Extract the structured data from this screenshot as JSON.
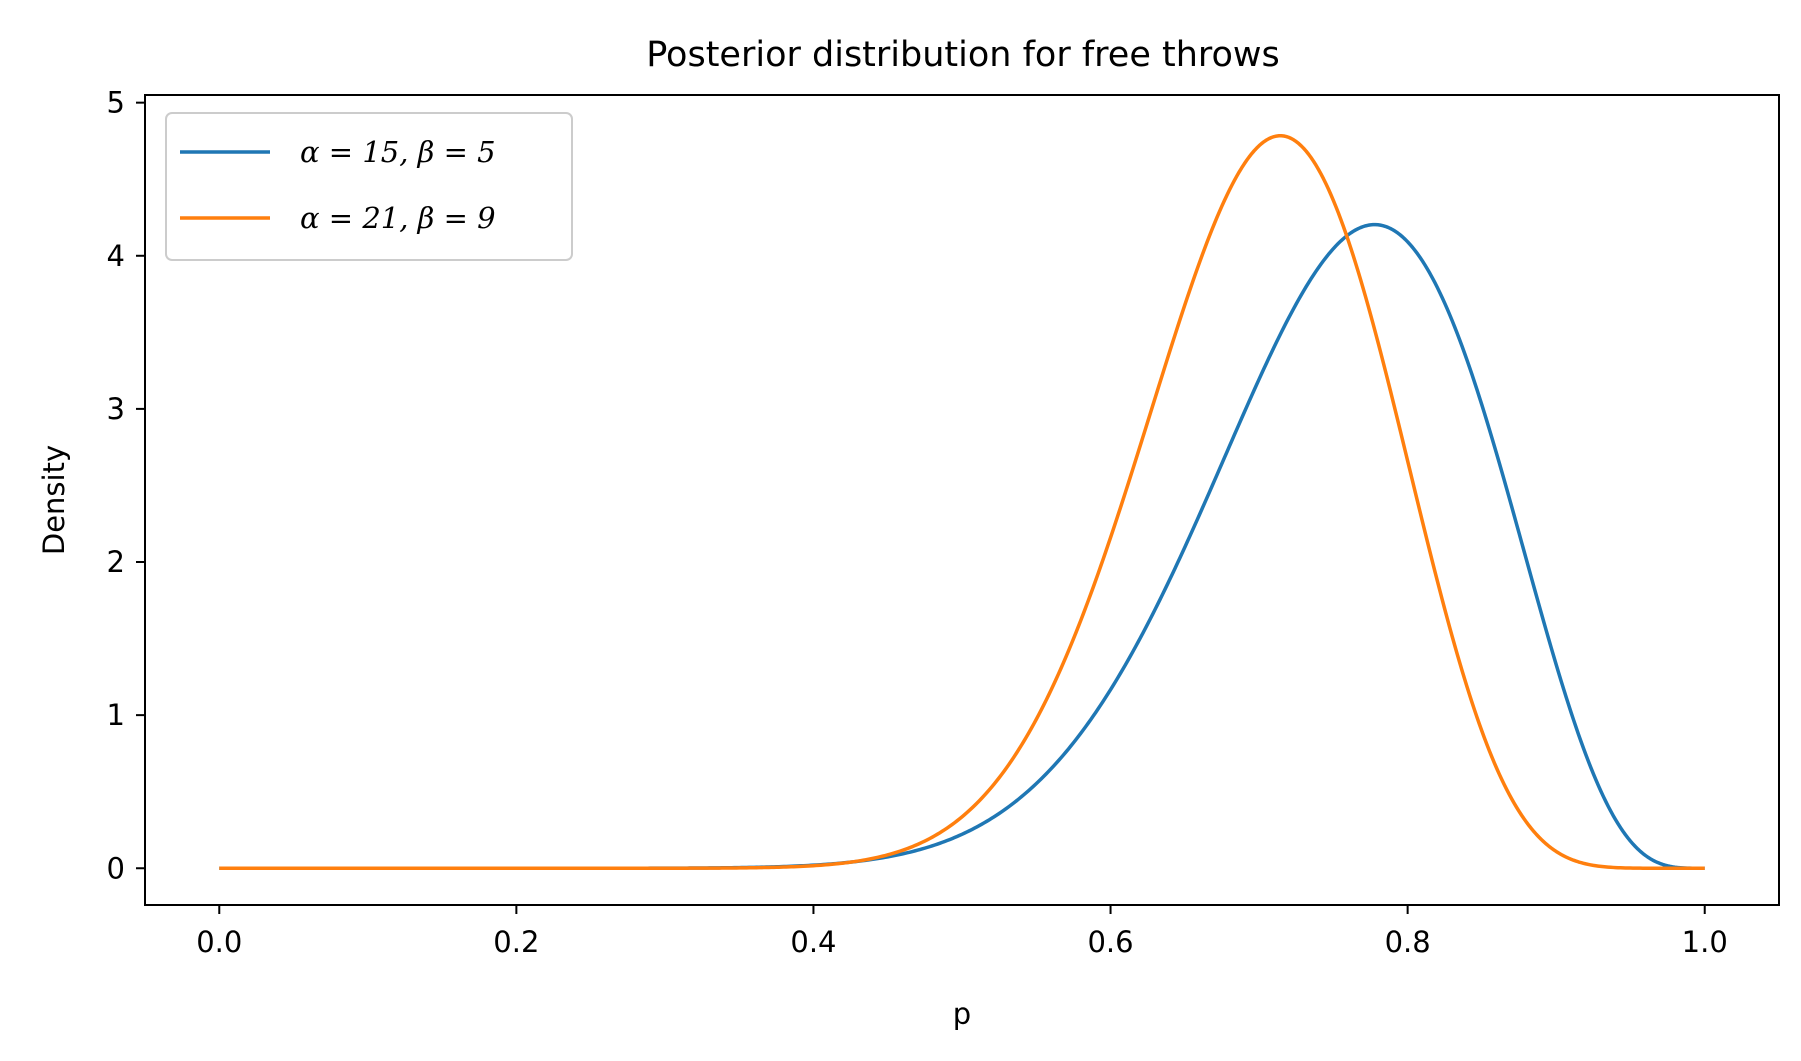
{
  "chart_data": {
    "type": "line",
    "title": "Posterior distribution for free throws",
    "xlabel": "p",
    "ylabel": "Density",
    "xlim": [
      -0.05,
      1.05
    ],
    "ylim": [
      -0.24,
      5.05
    ],
    "x_ticks": [
      0.0,
      0.2,
      0.4,
      0.6,
      0.8,
      1.0
    ],
    "x_tick_labels": [
      "0.0",
      "0.2",
      "0.4",
      "0.6",
      "0.8",
      "1.0"
    ],
    "y_ticks": [
      0,
      1,
      2,
      3,
      4,
      5
    ],
    "y_tick_labels": [
      "0",
      "1",
      "2",
      "3",
      "4",
      "5"
    ],
    "grid": false,
    "legend_position": "top-left",
    "series": [
      {
        "name": "α = 15, β = 5",
        "alpha": 15,
        "beta": 5,
        "color": "#1f77b4",
        "x": [
          0.0,
          0.05,
          0.1,
          0.15,
          0.2,
          0.25,
          0.3,
          0.35,
          0.4,
          0.45,
          0.5,
          0.55,
          0.6,
          0.65,
          0.7,
          0.75,
          0.7778,
          0.8,
          0.85,
          0.9,
          0.95,
          1.0
        ],
        "values": [
          0.0,
          0.0,
          0.0,
          0.0,
          0.0,
          0.0,
          0.001,
          0.005,
          0.025,
          0.09,
          0.28,
          0.66,
          1.29,
          2.23,
          3.28,
          4.09,
          4.21,
          4.14,
          3.49,
          1.97,
          0.41,
          0.0
        ]
      },
      {
        "name": "α = 21, β = 9",
        "alpha": 21,
        "beta": 9,
        "color": "#ff7f0e",
        "x": [
          0.0,
          0.05,
          0.1,
          0.15,
          0.2,
          0.25,
          0.3,
          0.35,
          0.4,
          0.45,
          0.5,
          0.55,
          0.6,
          0.65,
          0.7,
          0.7143,
          0.75,
          0.8,
          0.85,
          0.9,
          0.95,
          1.0
        ],
        "values": [
          0.0,
          0.0,
          0.0,
          0.0,
          0.0,
          0.0,
          0.0,
          0.002,
          0.02,
          0.11,
          0.44,
          1.24,
          2.53,
          3.87,
          4.74,
          4.79,
          4.35,
          2.91,
          1.17,
          0.21,
          0.006,
          0.0
        ]
      }
    ]
  }
}
